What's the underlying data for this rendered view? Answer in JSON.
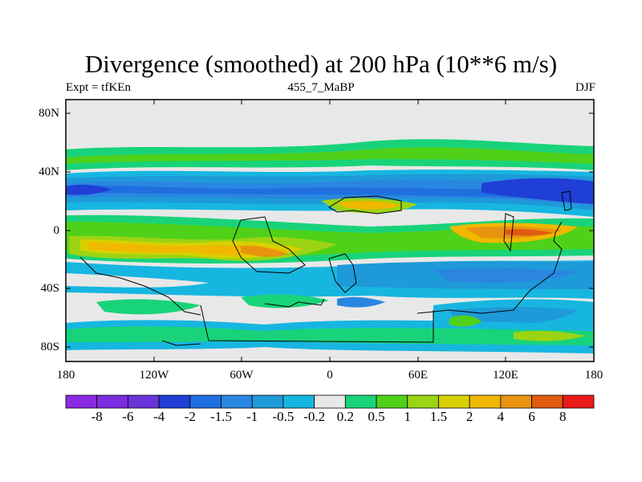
{
  "title": "Divergence (smoothed) at 200 hPa (10**6 m/s)",
  "subtitle_left": "Expt = tfKEn",
  "subtitle_center": "455_7_MaBP",
  "subtitle_right": "DJF",
  "map": {
    "projection": "cylindrical equidistant",
    "lon_range": [
      -180,
      180
    ],
    "lat_range": [
      -90,
      90
    ],
    "y_tick_labels": [
      "80N",
      "40N",
      "0",
      "40S",
      "80S"
    ],
    "x_tick_labels": [
      "180",
      "120W",
      "60W",
      "0",
      "60E",
      "120E",
      "180"
    ],
    "coastline_color": "#000000",
    "background_color": "#e8e8e8"
  },
  "colorbar": {
    "labels": [
      "-8",
      "-6",
      "-4",
      "-2",
      "-1.5",
      "-1",
      "-0.5",
      "-0.2",
      "0.2",
      "0.5",
      "1",
      "1.5",
      "2",
      "4",
      "6",
      "8"
    ],
    "colors": [
      "#8a2be2",
      "#7b2de0",
      "#6a34d8",
      "#1f3fd6",
      "#1f6fe0",
      "#2a86e0",
      "#1e9ad8",
      "#17b6e0",
      "#e8e8e8",
      "#19d37a",
      "#4fd119",
      "#9bd412",
      "#d8d000",
      "#f0b800",
      "#e89410",
      "#e05a10",
      "#e81a1a"
    ]
  }
}
